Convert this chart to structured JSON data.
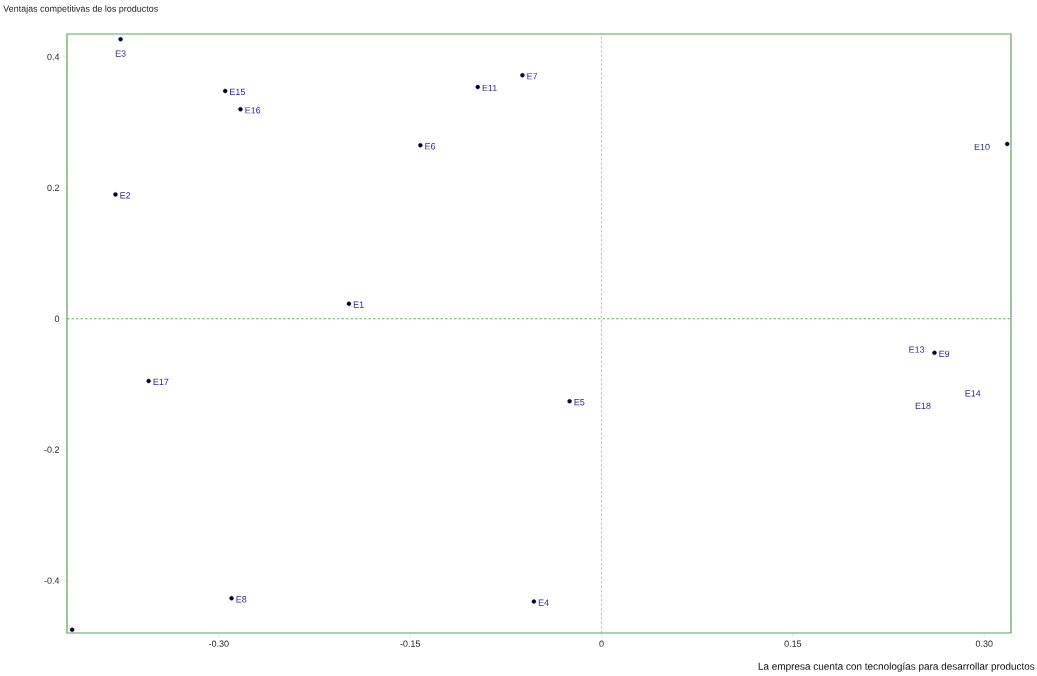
{
  "chart_data": {
    "type": "scatter",
    "xlabel": "La empresa cuenta con tecnologías para desarrollar productos",
    "ylabel": "Ventajas competitivas de los productos",
    "x": [
      -0.377,
      -0.295,
      -0.283,
      -0.381,
      -0.142,
      -0.097,
      -0.062,
      -0.198,
      0.318,
      -0.355,
      -0.29,
      -0.415,
      -0.025,
      -0.053,
      0.261
    ],
    "values": [
      0.427,
      0.348,
      0.32,
      0.19,
      0.265,
      0.354,
      0.372,
      0.023,
      0.267,
      -0.095,
      -0.427,
      -0.475,
      -0.126,
      -0.432,
      -0.052
    ],
    "color": "#000033",
    "marker": "circle",
    "xlim": [
      -0.419,
      0.321
    ],
    "ylim": [
      -0.48,
      0.435
    ],
    "xticks": [
      {
        "value": -0.3,
        "label": "-0.30"
      },
      {
        "value": -0.15,
        "label": "-0.15"
      },
      {
        "value": 0,
        "label": "0"
      },
      {
        "value": 0.15,
        "label": "0.15"
      },
      {
        "value": 0.3,
        "label": "0.30"
      }
    ],
    "yticks": [
      -0.4,
      -0.2,
      0,
      0.2,
      0.4
    ],
    "ref_lines": [
      {
        "axis": "x",
        "value": 0,
        "color": "#a8bca8",
        "line_style": "dashed"
      },
      {
        "axis": "y",
        "value": 0,
        "color": "#3e9e3e",
        "line_style": "dashed"
      }
    ],
    "annotations": [
      {
        "text": "E3",
        "x": -0.377,
        "y": 0.427
      },
      {
        "text": "E15",
        "x": -0.295,
        "y": 0.348
      },
      {
        "text": "E16",
        "x": -0.283,
        "y": 0.32
      },
      {
        "text": "E2",
        "x": -0.381,
        "y": 0.19
      },
      {
        "text": "E6",
        "x": -0.142,
        "y": 0.265
      },
      {
        "text": "E11",
        "x": -0.097,
        "y": 0.354
      },
      {
        "text": "E7",
        "x": -0.062,
        "y": 0.372
      },
      {
        "text": "E1",
        "x": -0.198,
        "y": 0.023
      },
      {
        "text": "E10",
        "x": 0.318,
        "y": 0.267
      },
      {
        "text": "E17",
        "x": -0.355,
        "y": -0.095
      },
      {
        "text": "E8",
        "x": -0.29,
        "y": -0.427
      },
      {
        "text": "E5",
        "x": -0.025,
        "y": -0.126
      },
      {
        "text": "E4",
        "x": -0.053,
        "y": -0.432
      },
      {
        "text": "E9",
        "x": 0.261,
        "y": -0.052
      },
      "E13",
      "E14",
      "E18"
    ]
  }
}
